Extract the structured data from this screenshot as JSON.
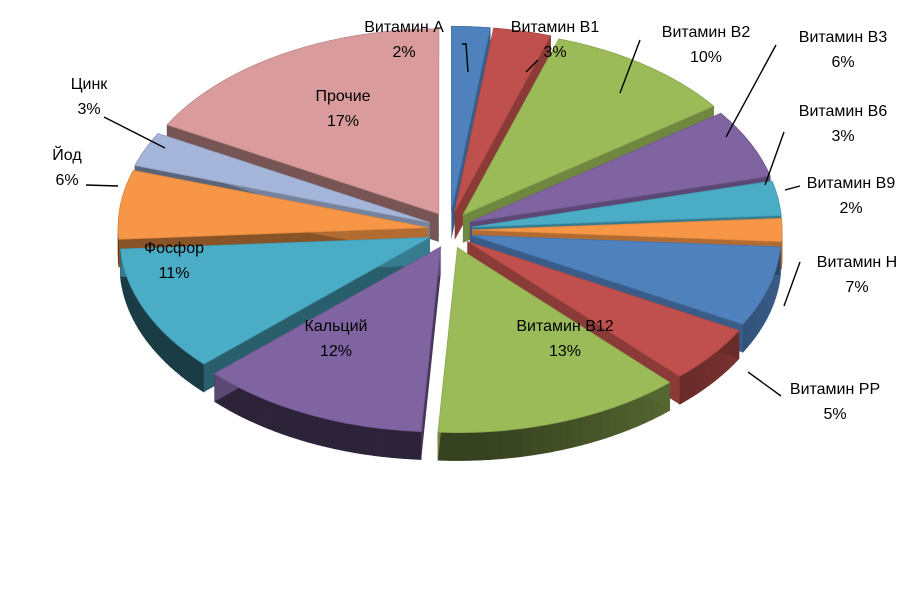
{
  "chart_data": {
    "type": "pie",
    "style": "3d-exploded",
    "legend": "none",
    "slices": [
      {
        "label": "Витамин А",
        "value": 2,
        "value_label": "2%",
        "color": "#4f81bd"
      },
      {
        "label": "Витамин В1",
        "value": 3,
        "value_label": "3%",
        "color": "#c0504d"
      },
      {
        "label": "Витамин В2",
        "value": 10,
        "value_label": "10%",
        "color": "#9bbb59"
      },
      {
        "label": "Витамин В3",
        "value": 6,
        "value_label": "6%",
        "color": "#8064a2"
      },
      {
        "label": "Витамин В6",
        "value": 3,
        "value_label": "3%",
        "color": "#4bacc6"
      },
      {
        "label": "Витамин В9",
        "value": 2,
        "value_label": "2%",
        "color": "#f79646"
      },
      {
        "label": "Витамин Н",
        "value": 7,
        "value_label": "7%",
        "color": "#4f81bd"
      },
      {
        "label": "Витамин РР",
        "value": 5,
        "value_label": "5%",
        "color": "#c0504d"
      },
      {
        "label": "Витамин В12",
        "value": 13,
        "value_label": "13%",
        "color": "#9bbb59"
      },
      {
        "label": "Кальций",
        "value": 12,
        "value_label": "12%",
        "color": "#8064a2"
      },
      {
        "label": "Фосфор",
        "value": 11,
        "value_label": "11%",
        "color": "#4bacc6"
      },
      {
        "label": "Йод",
        "value": 6,
        "value_label": "6%",
        "color": "#f79646"
      },
      {
        "label": "Цинк",
        "value": 3,
        "value_label": "3%",
        "color": "#a5b5da"
      },
      {
        "label": "Прочие",
        "value": 17,
        "value_label": "17%",
        "color": "#d99b9b"
      }
    ]
  }
}
